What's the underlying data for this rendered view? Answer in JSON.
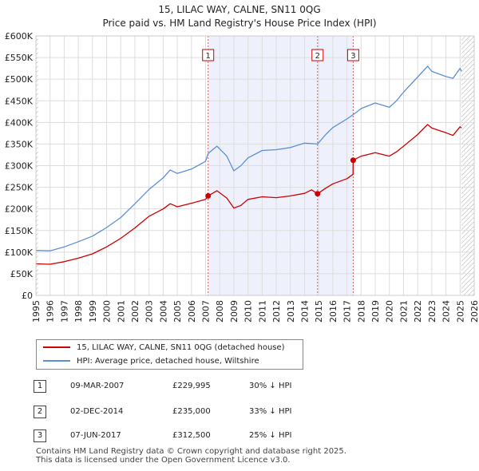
{
  "chart_data": {
    "type": "line",
    "title": "15, LILAC WAY, CALNE, SN11 0QG",
    "subtitle": "Price paid vs. HM Land Registry's House Price Index (HPI)",
    "y_ticks": [
      "£0",
      "£50K",
      "£100K",
      "£150K",
      "£200K",
      "£250K",
      "£300K",
      "£350K",
      "£400K",
      "£450K",
      "£500K",
      "£550K",
      "£600K"
    ],
    "x_ticks": [
      "1995",
      "1996",
      "1997",
      "1998",
      "1999",
      "2000",
      "2001",
      "2002",
      "2003",
      "2004",
      "2005",
      "2006",
      "2007",
      "2008",
      "2009",
      "2010",
      "2011",
      "2012",
      "2013",
      "2014",
      "2015",
      "2016",
      "2017",
      "2018",
      "2019",
      "2020",
      "2021",
      "2022",
      "2023",
      "2024",
      "2025",
      "2026"
    ],
    "xlim": [
      1995,
      2026
    ],
    "ylim": [
      0,
      600000
    ],
    "grid": true,
    "series": [
      {
        "name": "15, LILAC WAY, CALNE, SN11 0QG (detached house)",
        "color": "#cc0000",
        "points": [
          [
            1995.0,
            73000
          ],
          [
            1996.0,
            72000
          ],
          [
            1997.0,
            78000
          ],
          [
            1998.0,
            86000
          ],
          [
            1999.0,
            96000
          ],
          [
            2000.0,
            112000
          ],
          [
            2001.0,
            132000
          ],
          [
            2002.0,
            156000
          ],
          [
            2003.0,
            183000
          ],
          [
            2004.0,
            200000
          ],
          [
            2004.5,
            212000
          ],
          [
            2005.0,
            205000
          ],
          [
            2006.0,
            213000
          ],
          [
            2007.0,
            222000
          ],
          [
            2007.18,
            229995
          ],
          [
            2007.8,
            242000
          ],
          [
            2008.5,
            225000
          ],
          [
            2009.0,
            202000
          ],
          [
            2009.5,
            208000
          ],
          [
            2010.0,
            222000
          ],
          [
            2011.0,
            228000
          ],
          [
            2012.0,
            226000
          ],
          [
            2013.0,
            230000
          ],
          [
            2014.0,
            236000
          ],
          [
            2014.5,
            244000
          ],
          [
            2014.92,
            235000
          ],
          [
            2015.5,
            248000
          ],
          [
            2016.0,
            258000
          ],
          [
            2017.0,
            270000
          ],
          [
            2017.43,
            280000
          ],
          [
            2017.44,
            312500
          ],
          [
            2018.0,
            322000
          ],
          [
            2019.0,
            330000
          ],
          [
            2020.0,
            322000
          ],
          [
            2020.5,
            332000
          ],
          [
            2021.0,
            345000
          ],
          [
            2022.0,
            372000
          ],
          [
            2022.7,
            395000
          ],
          [
            2023.0,
            387000
          ],
          [
            2024.0,
            376000
          ],
          [
            2024.5,
            370000
          ],
          [
            2025.0,
            390000
          ],
          [
            2025.1,
            387000
          ]
        ]
      },
      {
        "name": "HPI: Average price, detached house, Wiltshire",
        "color": "#5b8fd4",
        "points": [
          [
            1995.0,
            104000
          ],
          [
            1996.0,
            103000
          ],
          [
            1997.0,
            112000
          ],
          [
            1998.0,
            124000
          ],
          [
            1999.0,
            137000
          ],
          [
            2000.0,
            157000
          ],
          [
            2001.0,
            180000
          ],
          [
            2002.0,
            212000
          ],
          [
            2003.0,
            245000
          ],
          [
            2004.0,
            272000
          ],
          [
            2004.5,
            290000
          ],
          [
            2005.0,
            282000
          ],
          [
            2006.0,
            292000
          ],
          [
            2007.0,
            310000
          ],
          [
            2007.18,
            328000
          ],
          [
            2007.8,
            345000
          ],
          [
            2008.5,
            322000
          ],
          [
            2009.0,
            288000
          ],
          [
            2009.5,
            300000
          ],
          [
            2010.0,
            318000
          ],
          [
            2011.0,
            335000
          ],
          [
            2012.0,
            337000
          ],
          [
            2013.0,
            342000
          ],
          [
            2014.0,
            352000
          ],
          [
            2014.92,
            350000
          ],
          [
            2015.5,
            372000
          ],
          [
            2016.0,
            388000
          ],
          [
            2017.0,
            408000
          ],
          [
            2017.44,
            418000
          ],
          [
            2018.0,
            432000
          ],
          [
            2019.0,
            445000
          ],
          [
            2020.0,
            435000
          ],
          [
            2020.5,
            450000
          ],
          [
            2021.0,
            470000
          ],
          [
            2022.0,
            505000
          ],
          [
            2022.7,
            530000
          ],
          [
            2023.0,
            518000
          ],
          [
            2024.0,
            506000
          ],
          [
            2024.5,
            502000
          ],
          [
            2025.0,
            525000
          ],
          [
            2025.1,
            518000
          ]
        ]
      }
    ],
    "hatched_regions": [
      [
        1995.0,
        1995.15
      ],
      [
        2025.1,
        2026.0
      ]
    ],
    "sales": [
      {
        "id": "1",
        "date": "09-MAR-2007",
        "year": 2007.18,
        "price": "£229,995",
        "value": 229995,
        "hpi": "30% ↓ HPI"
      },
      {
        "id": "2",
        "date": "02-DEC-2014",
        "year": 2014.92,
        "price": "£235,000",
        "value": 235000,
        "hpi": "33% ↓ HPI"
      },
      {
        "id": "3",
        "date": "07-JUN-2017",
        "year": 2017.44,
        "price": "£312,500",
        "value": 312500,
        "hpi": "25% ↓ HPI"
      }
    ],
    "legend": {
      "property": "15, LILAC WAY, CALNE, SN11 0QG (detached house)",
      "hpi": "HPI: Average price, detached house, Wiltshire"
    }
  },
  "footer": {
    "line1": "Contains HM Land Registry data © Crown copyright and database right 2025.",
    "line2": "This data is licensed under the Open Government Licence v3.0."
  }
}
